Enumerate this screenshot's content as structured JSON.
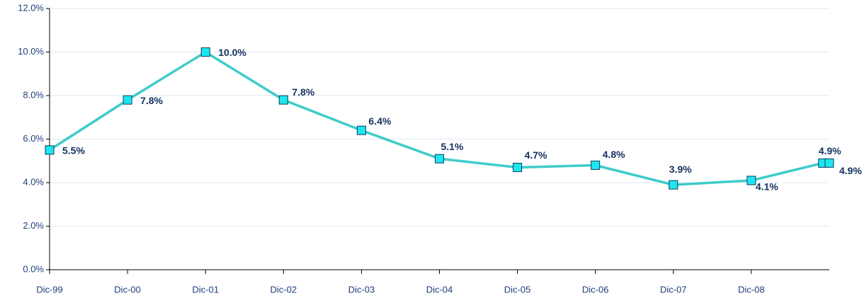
{
  "chart_data": {
    "type": "line",
    "x": [
      0,
      12,
      24,
      36,
      48,
      60,
      72,
      84,
      96,
      108,
      119,
      120
    ],
    "xlim": [
      0,
      120
    ],
    "xticks": [
      {
        "value": 0,
        "label": "Dic-99"
      },
      {
        "value": 12,
        "label": "Dic-00"
      },
      {
        "value": 24,
        "label": "Dic-01"
      },
      {
        "value": 36,
        "label": "Dic-02"
      },
      {
        "value": 48,
        "label": "Dic-03"
      },
      {
        "value": 60,
        "label": "Dic-04"
      },
      {
        "value": 72,
        "label": "Dic-05"
      },
      {
        "value": 84,
        "label": "Dic-06"
      },
      {
        "value": 96,
        "label": "Dic-07"
      },
      {
        "value": 108,
        "label": "Dic-08"
      }
    ],
    "ylim": [
      0,
      12
    ],
    "yticks": [
      {
        "value": 0,
        "label": "0.0%"
      },
      {
        "value": 2,
        "label": "2.0%"
      },
      {
        "value": 4,
        "label": "4.0%"
      },
      {
        "value": 6,
        "label": "6.0%"
      },
      {
        "value": 8,
        "label": "8.0%"
      },
      {
        "value": 10,
        "label": "10.0%"
      },
      {
        "value": 12,
        "label": "12.0%"
      }
    ],
    "grid": true,
    "series": [
      {
        "color": "#3ecbcb",
        "values": [
          5.5,
          7.8,
          10.0,
          7.8,
          6.4,
          5.1,
          4.7,
          4.8,
          3.9,
          4.1,
          4.9,
          4.9
        ],
        "value_labels": [
          "5.5%",
          "7.8%",
          "10.0%",
          "7.8%",
          "6.4%",
          "5.1%",
          "4.7%",
          "4.8%",
          "3.9%",
          "4.1%",
          "4.9%",
          "4.9%"
        ]
      }
    ]
  }
}
